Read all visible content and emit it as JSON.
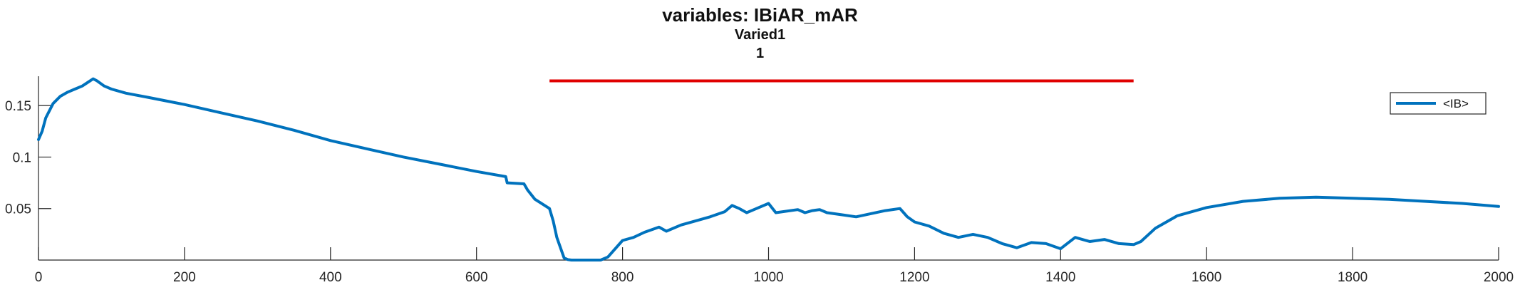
{
  "chart_data": {
    "type": "line",
    "title": "variables: IBiAR_mAR",
    "subtitle_lines": [
      "Varied1",
      "1"
    ],
    "xlabel": "",
    "ylabel": "",
    "xlim": [
      0,
      2000
    ],
    "ylim": [
      0,
      0.175
    ],
    "x_ticks": [
      0,
      200,
      400,
      600,
      800,
      1000,
      1200,
      1400,
      1600,
      1800,
      2000
    ],
    "x_tick_labels": [
      "0",
      "200",
      "400",
      "600",
      "800",
      "1000",
      "1200",
      "1400",
      "1600",
      "1800",
      "2000"
    ],
    "y_ticks": [
      0.05,
      0.1,
      0.15
    ],
    "y_tick_labels": [
      "0.05",
      "0.1",
      "0.15"
    ],
    "grid": false,
    "legend": {
      "placement": "top-right",
      "entries": [
        "<IB>"
      ]
    },
    "series": [
      {
        "name": "<IB>",
        "color": "#0072BD",
        "x": [
          0,
          5,
          10,
          20,
          30,
          40,
          50,
          60,
          75,
          80,
          90,
          100,
          120,
          150,
          200,
          250,
          300,
          350,
          400,
          450,
          500,
          550,
          600,
          640,
          642,
          665,
          670,
          680,
          700,
          705,
          710,
          715,
          720,
          725,
          730,
          770,
          780,
          800,
          815,
          830,
          850,
          860,
          880,
          900,
          920,
          940,
          950,
          960,
          970,
          980,
          1000,
          1010,
          1040,
          1050,
          1060,
          1070,
          1080,
          1100,
          1120,
          1140,
          1160,
          1180,
          1190,
          1200,
          1220,
          1240,
          1260,
          1280,
          1300,
          1320,
          1340,
          1360,
          1380,
          1400,
          1420,
          1440,
          1460,
          1480,
          1500,
          1510,
          1530,
          1560,
          1600,
          1650,
          1700,
          1750,
          1800,
          1850,
          1900,
          1950,
          2000
        ],
        "values": [
          0.117,
          0.125,
          0.138,
          0.152,
          0.159,
          0.163,
          0.166,
          0.169,
          0.176,
          0.174,
          0.169,
          0.166,
          0.162,
          0.158,
          0.151,
          0.143,
          0.135,
          0.126,
          0.116,
          0.108,
          0.1,
          0.093,
          0.086,
          0.081,
          0.075,
          0.074,
          0.068,
          0.059,
          0.05,
          0.038,
          0.022,
          0.012,
          0.002,
          0.0005,
          0.0,
          0.0,
          0.003,
          0.019,
          0.022,
          0.027,
          0.032,
          0.028,
          0.034,
          0.038,
          0.042,
          0.047,
          0.053,
          0.05,
          0.046,
          0.049,
          0.055,
          0.046,
          0.049,
          0.046,
          0.048,
          0.049,
          0.046,
          0.044,
          0.042,
          0.045,
          0.048,
          0.05,
          0.042,
          0.037,
          0.033,
          0.026,
          0.022,
          0.025,
          0.022,
          0.016,
          0.012,
          0.017,
          0.016,
          0.011,
          0.022,
          0.018,
          0.02,
          0.016,
          0.015,
          0.018,
          0.031,
          0.043,
          0.051,
          0.057,
          0.06,
          0.061,
          0.06,
          0.059,
          0.057,
          0.055,
          0.052
        ]
      }
    ],
    "annotations": [
      {
        "type": "horizontal-bar",
        "color": "#E00000",
        "x_start": 700,
        "x_end": 1500,
        "value": 0.174
      }
    ]
  }
}
